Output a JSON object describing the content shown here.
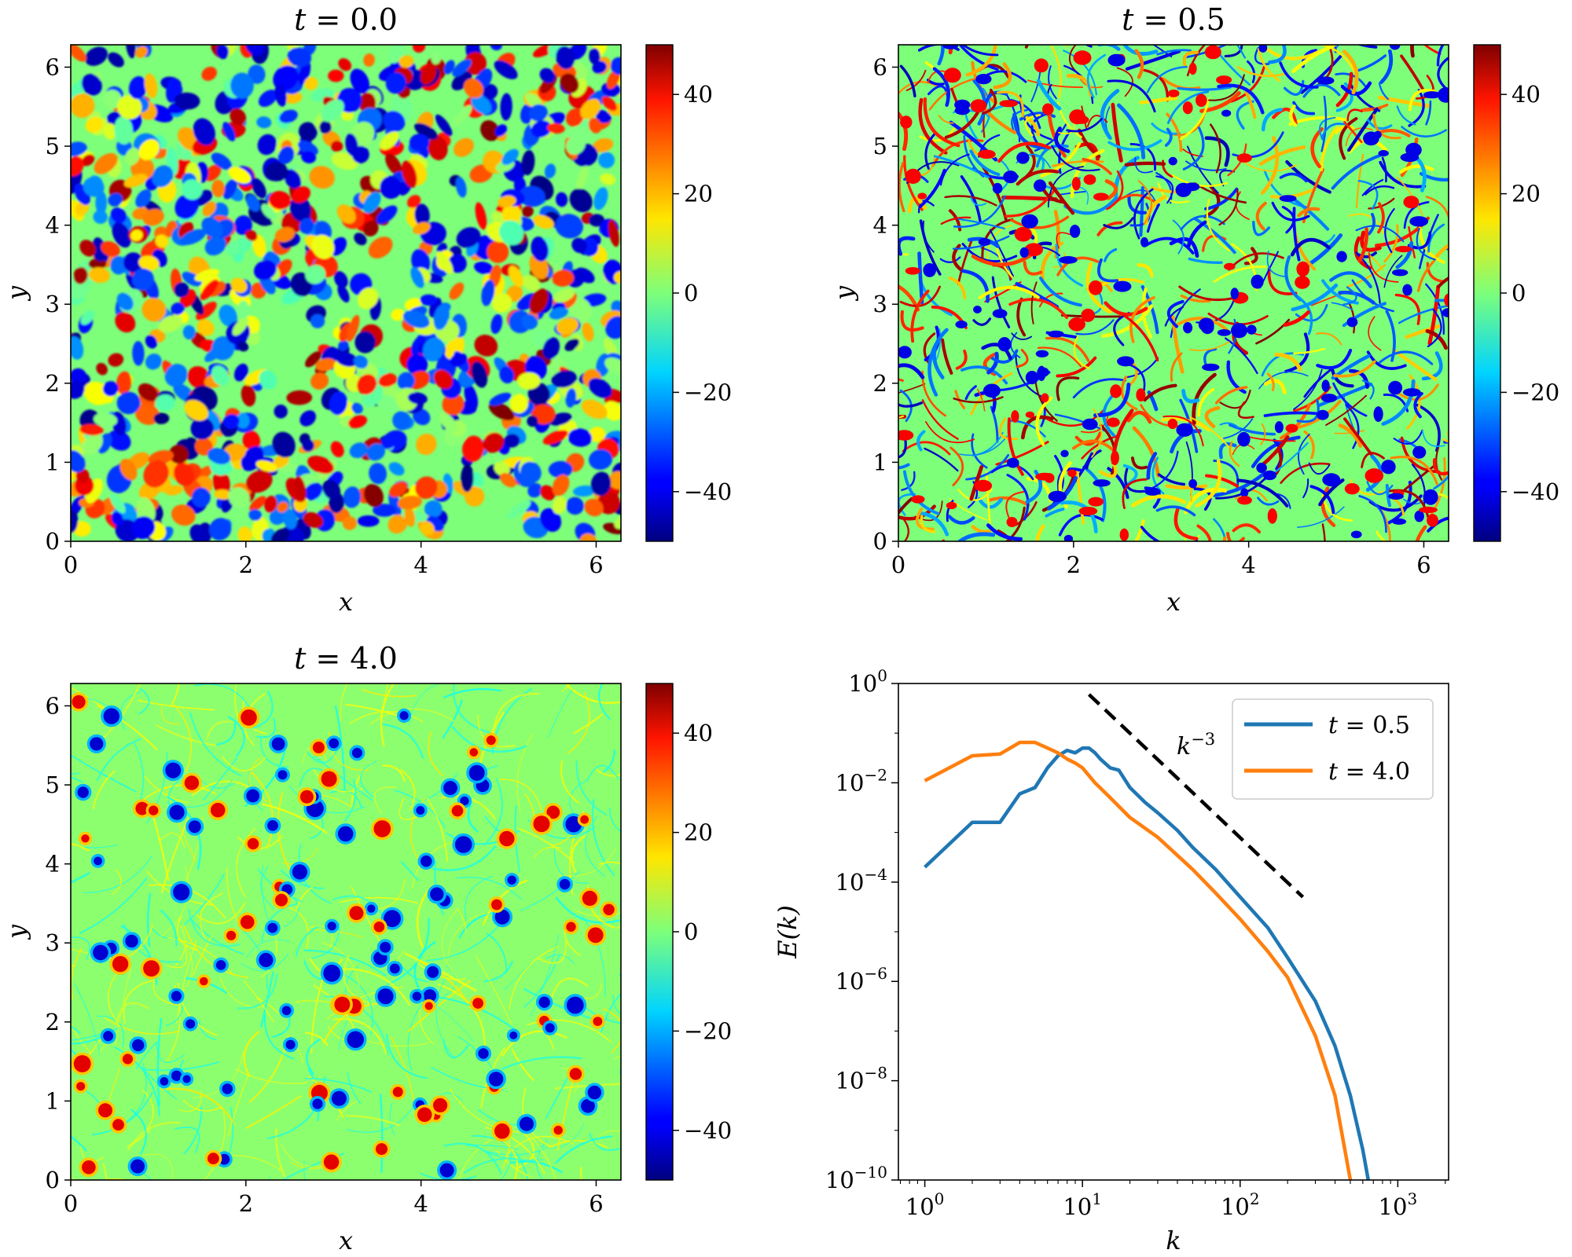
{
  "figure": {
    "panels": [
      {
        "id": "t0",
        "title_var": "t",
        "title_eq": " = ",
        "title_val": "0.0"
      },
      {
        "id": "t05",
        "title_var": "t",
        "title_eq": " = ",
        "title_val": "0.5"
      },
      {
        "id": "t4",
        "title_var": "t",
        "title_eq": " = ",
        "title_val": "4.0"
      }
    ]
  },
  "chart_data": [
    {
      "type": "heatmap",
      "title": "t = 0.0",
      "xlabel": "x",
      "ylabel": "y",
      "xlim": [
        0,
        6.283
      ],
      "ylim": [
        0,
        6.283
      ],
      "xticks": [
        "0",
        "2",
        "4",
        "6"
      ],
      "yticks": [
        "0",
        "1",
        "2",
        "3",
        "4",
        "5",
        "6"
      ],
      "colorbar": {
        "range": [
          -50,
          50
        ],
        "ticks": [
          "40",
          "20",
          "0",
          "−20",
          "−40"
        ],
        "colormap": "jet"
      }
    },
    {
      "type": "heatmap",
      "title": "t = 0.5",
      "xlabel": "x",
      "ylabel": "y",
      "xlim": [
        0,
        6.283
      ],
      "ylim": [
        0,
        6.283
      ],
      "xticks": [
        "0",
        "2",
        "4",
        "6"
      ],
      "yticks": [
        "0",
        "1",
        "2",
        "3",
        "4",
        "5",
        "6"
      ],
      "colorbar": {
        "range": [
          -50,
          50
        ],
        "ticks": [
          "40",
          "20",
          "0",
          "−20",
          "−40"
        ],
        "colormap": "jet"
      }
    },
    {
      "type": "heatmap",
      "title": "t = 4.0",
      "xlabel": "x",
      "ylabel": "y",
      "xlim": [
        0,
        6.283
      ],
      "ylim": [
        0,
        6.283
      ],
      "xticks": [
        "0",
        "2",
        "4",
        "6"
      ],
      "yticks": [
        "0",
        "1",
        "2",
        "3",
        "4",
        "5",
        "6"
      ],
      "colorbar": {
        "range": [
          -50,
          50
        ],
        "ticks": [
          "40",
          "20",
          "0",
          "−20",
          "−40"
        ],
        "colormap": "jet"
      }
    },
    {
      "type": "line",
      "xscale": "log",
      "yscale": "log",
      "xlabel": "k",
      "ylabel": "E(k)",
      "xlim": [
        0.68,
        2100
      ],
      "ylim": [
        1e-10,
        1
      ],
      "xticks": [
        {
          "base": "10",
          "exp": "0"
        },
        {
          "base": "10",
          "exp": "1"
        },
        {
          "base": "10",
          "exp": "2"
        },
        {
          "base": "10",
          "exp": "3"
        }
      ],
      "yticks": [
        {
          "base": "10",
          "exp": "0"
        },
        {
          "base": "10",
          "exp": "−2"
        },
        {
          "base": "10",
          "exp": "−4"
        },
        {
          "base": "10",
          "exp": "−6"
        },
        {
          "base": "10",
          "exp": "−8"
        },
        {
          "base": "10",
          "exp": "−10"
        }
      ],
      "legend_position": "top-right",
      "series": [
        {
          "name": "t = 0.5",
          "legend_var": "t",
          "legend_val": " = 0.5",
          "color": "#1f77b4",
          "x": [
            1,
            2,
            3,
            4,
            5,
            6,
            7,
            8,
            9,
            10,
            11,
            12,
            13,
            15,
            17,
            20,
            25,
            30,
            40,
            50,
            70,
            100,
            150,
            200,
            300,
            400,
            500,
            600,
            650
          ],
          "y": [
            0.0002,
            0.0016,
            0.0016,
            0.006,
            0.008,
            0.02,
            0.035,
            0.045,
            0.04,
            0.05,
            0.05,
            0.04,
            0.03,
            0.02,
            0.018,
            0.008,
            0.004,
            0.0025,
            0.0011,
            0.0005,
            0.00018,
            5e-05,
            1.2e-05,
            3e-06,
            4e-07,
            5e-08,
            5e-09,
            4e-10,
            1e-10
          ]
        },
        {
          "name": "t = 4.0",
          "legend_var": "t",
          "legend_val": " = 4.0",
          "color": "#ff7f0e",
          "x": [
            1,
            2,
            3,
            4,
            5,
            6,
            7,
            8,
            9,
            10,
            12,
            15,
            20,
            30,
            50,
            70,
            100,
            150,
            200,
            300,
            400,
            500
          ],
          "y": [
            0.011,
            0.035,
            0.038,
            0.065,
            0.065,
            0.05,
            0.04,
            0.03,
            0.025,
            0.02,
            0.01,
            0.005,
            0.002,
            0.0008,
            0.00018,
            6e-05,
            1.8e-05,
            4e-06,
            1.2e-06,
            8e-08,
            5e-09,
            1e-10
          ]
        }
      ],
      "reference_line": {
        "label_base": "k",
        "label_exp": "−3",
        "x": [
          11,
          250
        ],
        "y": [
          0.6,
          5e-05
        ],
        "style": "dashed",
        "color": "#000000"
      }
    }
  ]
}
